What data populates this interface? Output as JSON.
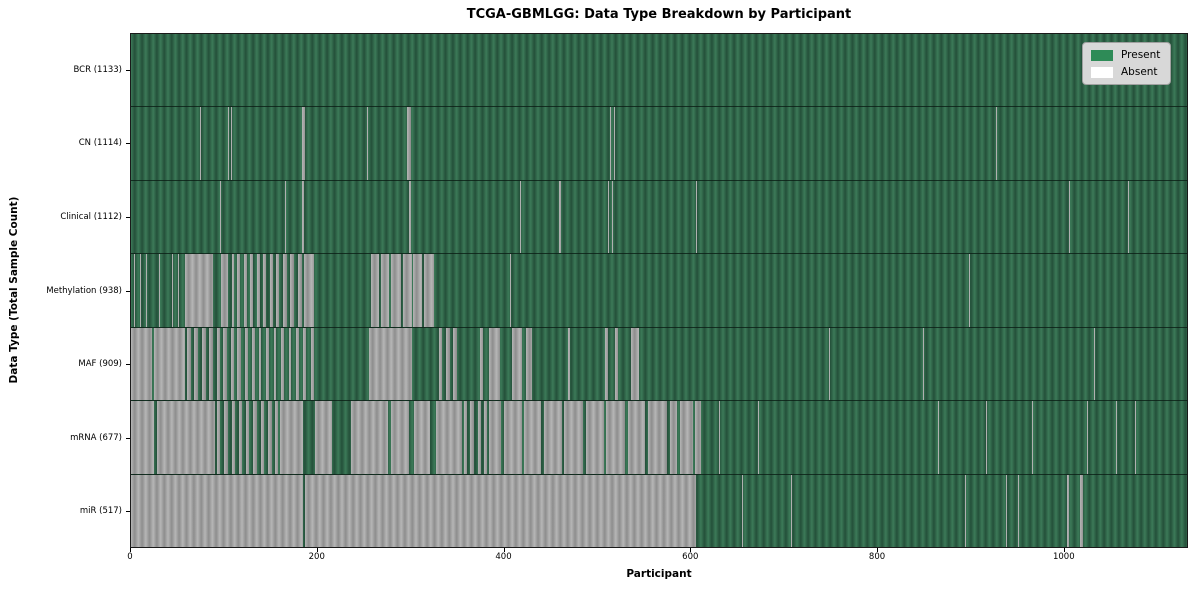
{
  "title": "TCGA-GBMLGG: Data Type Breakdown by Participant",
  "legend": {
    "items": [
      {
        "label": "Present",
        "color": "#2e8b57"
      },
      {
        "label": "Absent",
        "color": "#ffffff"
      }
    ]
  },
  "chart_data": {
    "type": "heatmap",
    "title": "TCGA-GBMLGG: Data Type Breakdown by Participant",
    "xlabel": "Participant",
    "ylabel": "Data Type (Total Sample Count)",
    "x_range": [
      0,
      1133
    ],
    "x_ticks": [
      0,
      200,
      400,
      600,
      800,
      1000
    ],
    "grid": false,
    "legend_position": "upper right",
    "cell_states": {
      "present_color": "#2e8b57",
      "absent_color": "#ffffff",
      "present_striped_dark": "#24503a",
      "absent_striped_dark": "#8d8d8d"
    },
    "rows": [
      {
        "name": "BCR",
        "label": "BCR (1133)",
        "present_count": 1133,
        "absent_count": 0,
        "absent_segments": []
      },
      {
        "name": "CN",
        "label": "CN (1114)",
        "present_count": 1114,
        "absent_count": 19,
        "absent_segments": [
          [
            74,
            75
          ],
          [
            104,
            105
          ],
          [
            107,
            108
          ],
          [
            125,
            126
          ],
          [
            183,
            187
          ],
          [
            253,
            254
          ],
          [
            296,
            300
          ],
          [
            514,
            515
          ],
          [
            518,
            519
          ],
          [
            928,
            929
          ]
        ]
      },
      {
        "name": "Clinical",
        "label": "Clinical (1112)",
        "present_count": 1112,
        "absent_count": 21,
        "absent_segments": [
          [
            96,
            97
          ],
          [
            165,
            166
          ],
          [
            184,
            186
          ],
          [
            298,
            300
          ],
          [
            417,
            418
          ],
          [
            459,
            461
          ],
          [
            512,
            513
          ],
          [
            516,
            517
          ],
          [
            606,
            607
          ],
          [
            1006,
            1007
          ],
          [
            1070,
            1071
          ]
        ]
      },
      {
        "name": "Methylation",
        "label": "Methylation (938)",
        "present_count": 938,
        "absent_count": 195,
        "absent_segments": [
          [
            3,
            4
          ],
          [
            10,
            11
          ],
          [
            16,
            17
          ],
          [
            22,
            23
          ],
          [
            30,
            31
          ],
          [
            36,
            37
          ],
          [
            44,
            45
          ],
          [
            50,
            52
          ],
          [
            58,
            88
          ],
          [
            97,
            104
          ],
          [
            108,
            110
          ],
          [
            114,
            117
          ],
          [
            121,
            124
          ],
          [
            128,
            131
          ],
          [
            135,
            138
          ],
          [
            142,
            145
          ],
          [
            149,
            152
          ],
          [
            156,
            159
          ],
          [
            163,
            167
          ],
          [
            171,
            175
          ],
          [
            179,
            183
          ],
          [
            186,
            196
          ],
          [
            257,
            266
          ],
          [
            268,
            277
          ],
          [
            279,
            290
          ],
          [
            292,
            301
          ],
          [
            303,
            312
          ],
          [
            314,
            325
          ],
          [
            407,
            408
          ],
          [
            899,
            900
          ],
          [
            1007,
            1008
          ]
        ]
      },
      {
        "name": "MAF",
        "label": "MAF (909)",
        "present_count": 909,
        "absent_count": 224,
        "absent_segments": [
          [
            0,
            23
          ],
          [
            25,
            58
          ],
          [
            60,
            64
          ],
          [
            68,
            72
          ],
          [
            76,
            80
          ],
          [
            84,
            88
          ],
          [
            92,
            95
          ],
          [
            99,
            103
          ],
          [
            107,
            110
          ],
          [
            114,
            118
          ],
          [
            122,
            126
          ],
          [
            130,
            133
          ],
          [
            137,
            140
          ],
          [
            145,
            148
          ],
          [
            153,
            156
          ],
          [
            161,
            164
          ],
          [
            169,
            172
          ],
          [
            177,
            180
          ],
          [
            185,
            188
          ],
          [
            193,
            196
          ],
          [
            255,
            302
          ],
          [
            330,
            334
          ],
          [
            338,
            342
          ],
          [
            346,
            350
          ],
          [
            374,
            378
          ],
          [
            384,
            396
          ],
          [
            409,
            420
          ],
          [
            424,
            430
          ],
          [
            469,
            471
          ],
          [
            509,
            512
          ],
          [
            519,
            522
          ],
          [
            536,
            545
          ],
          [
            749,
            750
          ],
          [
            850,
            851
          ],
          [
            1033,
            1034
          ]
        ]
      },
      {
        "name": "mRNA",
        "label": "mRNA (677)",
        "present_count": 677,
        "absent_count": 456,
        "absent_segments": [
          [
            0,
            25
          ],
          [
            28,
            90
          ],
          [
            92,
            96
          ],
          [
            100,
            104
          ],
          [
            108,
            112
          ],
          [
            116,
            119
          ],
          [
            123,
            127
          ],
          [
            131,
            135
          ],
          [
            139,
            143
          ],
          [
            147,
            151
          ],
          [
            155,
            158
          ],
          [
            160,
            185
          ],
          [
            197,
            216
          ],
          [
            236,
            276
          ],
          [
            279,
            298
          ],
          [
            304,
            321
          ],
          [
            327,
            355
          ],
          [
            357,
            360
          ],
          [
            364,
            368
          ],
          [
            372,
            376
          ],
          [
            379,
            382
          ],
          [
            384,
            397
          ],
          [
            400,
            420
          ],
          [
            422,
            440
          ],
          [
            443,
            462
          ],
          [
            465,
            485
          ],
          [
            488,
            507
          ],
          [
            510,
            530
          ],
          [
            533,
            552
          ],
          [
            555,
            575
          ],
          [
            578,
            586
          ],
          [
            589,
            603
          ],
          [
            605,
            612
          ],
          [
            631,
            632
          ],
          [
            673,
            674
          ],
          [
            866,
            867
          ],
          [
            917,
            918
          ],
          [
            967,
            968
          ],
          [
            1026,
            1027
          ],
          [
            1057,
            1058
          ],
          [
            1077,
            1078
          ]
        ]
      },
      {
        "name": "miR",
        "label": "miR (517)",
        "present_count": 517,
        "absent_count": 616,
        "absent_segments": [
          [
            0,
            185
          ],
          [
            187,
            606
          ],
          [
            656,
            657
          ],
          [
            708,
            709
          ],
          [
            895,
            896
          ],
          [
            939,
            940
          ],
          [
            952,
            953
          ],
          [
            1004,
            1006
          ],
          [
            1018,
            1021
          ]
        ]
      }
    ]
  }
}
